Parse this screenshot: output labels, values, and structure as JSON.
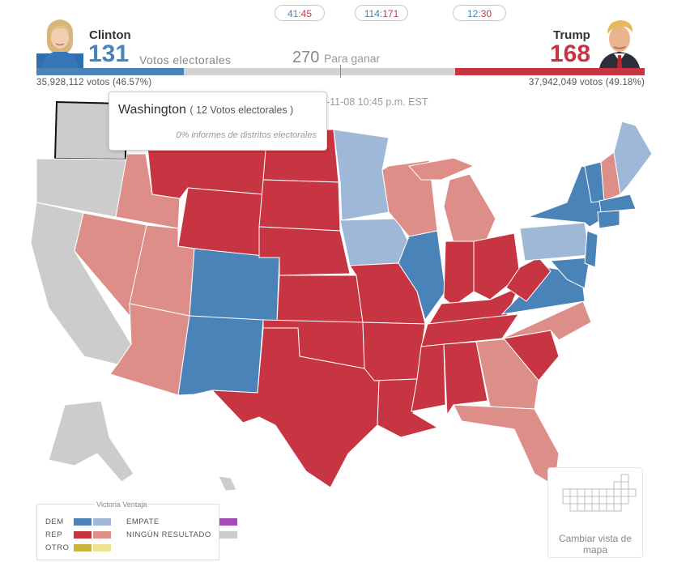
{
  "header": {
    "pills": [
      {
        "dem": "41",
        "sep": ":",
        "rep": "45"
      },
      {
        "dem": "114",
        "sep": ":",
        "rep": "171"
      },
      {
        "dem": "12",
        "sep": ":",
        "rep": "30"
      }
    ],
    "clinton": {
      "name": "Clinton",
      "electoral_votes": "131",
      "popular_vote": "35,928,112 votos (46.57%)"
    },
    "trump": {
      "name": "Trump",
      "electoral_votes": "168",
      "popular_vote": "37,942,049 votos (49.18%)"
    },
    "ev_label": "Votos electorales",
    "to_win_number": "270",
    "to_win_label": "Para ganar",
    "updated": "6-11-08 10:45 p.m. EST"
  },
  "tooltip": {
    "state": "Washington",
    "electoral_votes": "( 12 Votos electorales )",
    "reporting": "0% informes de distritos electorales"
  },
  "colors": {
    "dem_win": "#4a83b8",
    "dem_lead": "#a0b8d8",
    "rep_win": "#c83542",
    "rep_lead": "#de8e88",
    "other_win": "#c8b43a",
    "other_lead": "#ece38e",
    "tie": "#a24bb5",
    "no_result": "#cccccc"
  },
  "legend": {
    "header": "Victoria Ventaja",
    "dem": "DEM",
    "rep": "REP",
    "other": "OTRO",
    "tie": "EMPATE",
    "no_result": "NINGÚN RESULTADO"
  },
  "map_view": {
    "label": "Cambiar vista de mapa"
  }
}
